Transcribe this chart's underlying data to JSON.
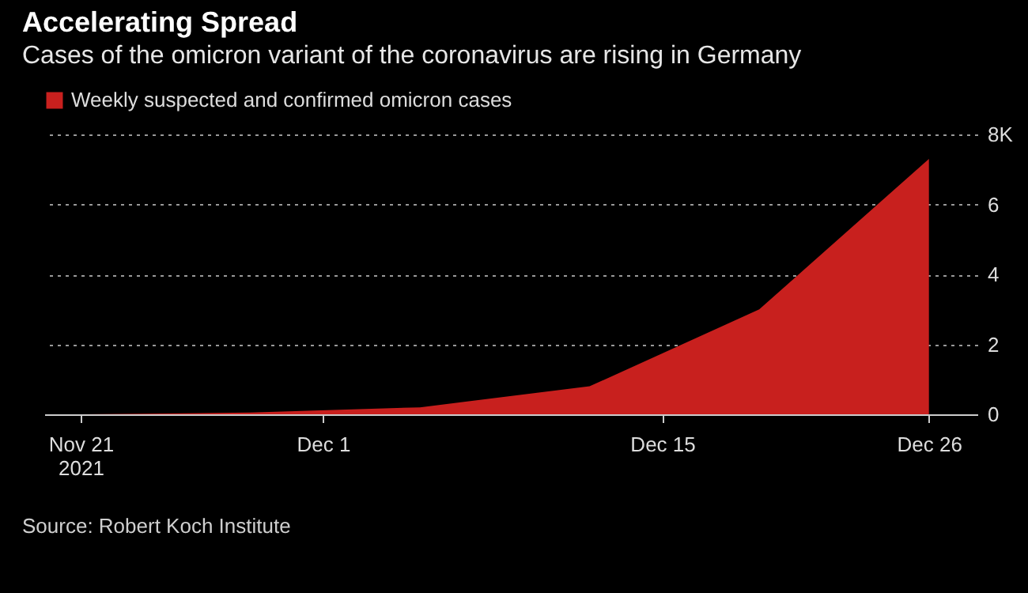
{
  "chart_data": {
    "type": "area",
    "title": "Accelerating Spread",
    "subtitle": "Cases of the omicron variant of the coronavirus are rising in Germany",
    "annotations": [
      "Source: Robert Koch Institute"
    ],
    "x": [
      "2021-11-21",
      "2021-11-28",
      "2021-12-05",
      "2021-12-12",
      "2021-12-19",
      "2021-12-26"
    ],
    "series": [
      {
        "name": "Weekly suspected and confirmed omicron cases",
        "color": "#c8201e",
        "values": [
          0,
          0.05,
          0.2,
          0.8,
          3.0,
          7.3
        ]
      }
    ],
    "xlim": [
      "2021-11-19T12:00",
      "2021-12-28"
    ],
    "xticks": [
      {
        "value": "2021-11-21",
        "label": "Nov 21\n2021"
      },
      {
        "value": "2021-12-01",
        "label": "Dec 1"
      },
      {
        "value": "2021-12-15",
        "label": "Dec 15"
      },
      {
        "value": "2021-12-26",
        "label": "Dec 26"
      }
    ],
    "ylim": [
      0,
      8
    ],
    "yticks": [
      0,
      2,
      4,
      6,
      {
        "value": 8,
        "label": "8K"
      }
    ],
    "grid": "y",
    "legend": "top left"
  }
}
